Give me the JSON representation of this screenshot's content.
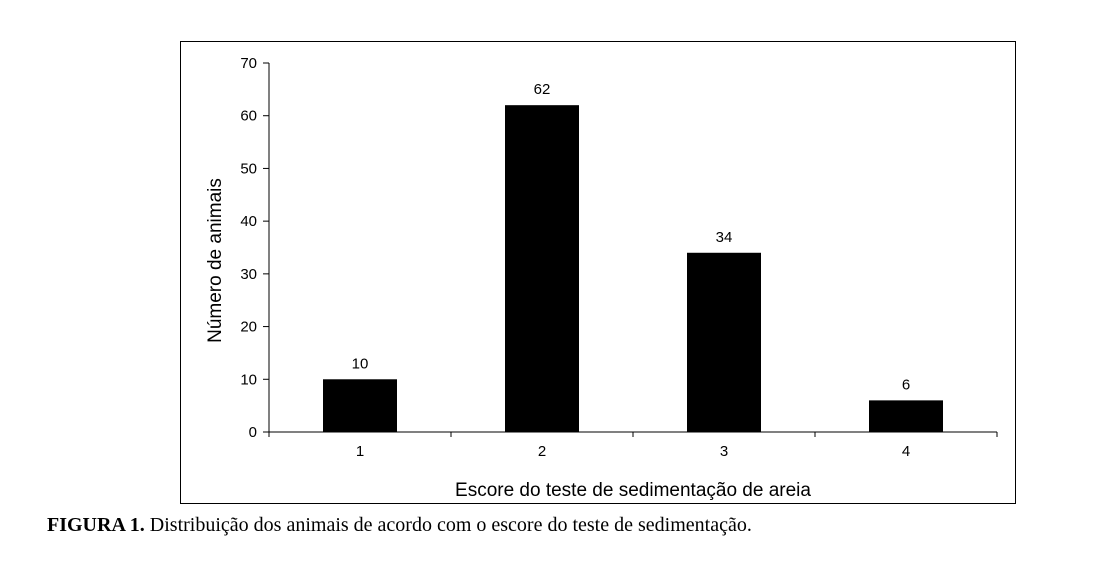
{
  "caption": {
    "label": "FIGURA 1.",
    "text": " Distribuição dos animais de acordo com o escore do teste de sedimentação."
  },
  "chart_data": {
    "type": "bar",
    "title": "",
    "categories": [
      "1",
      "2",
      "3",
      "4"
    ],
    "values": [
      10,
      62,
      34,
      6
    ],
    "data_labels": [
      "10",
      "62",
      "34",
      "6"
    ],
    "xlabel": "Escore do teste de sedimentação de areia",
    "ylabel": "Número de animais",
    "ylim": [
      0,
      70
    ],
    "yticks": [
      0,
      10,
      20,
      30,
      40,
      50,
      60,
      70
    ],
    "grid": false,
    "legend": "none",
    "bar_color": "#000000"
  }
}
